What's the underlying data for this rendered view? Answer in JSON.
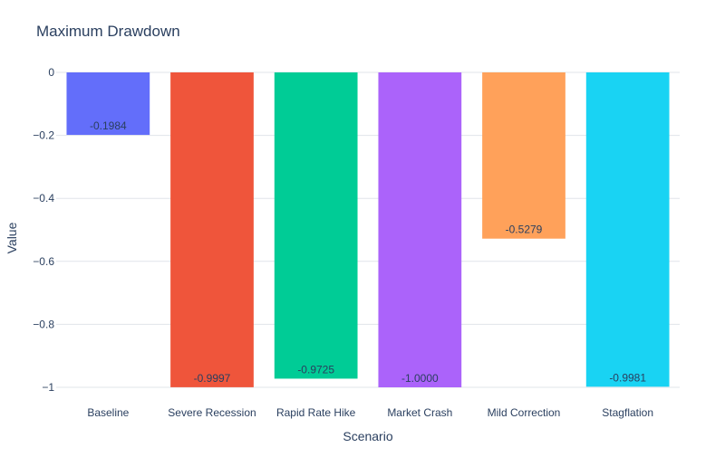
{
  "chart_data": {
    "type": "bar",
    "title": "Maximum Drawdown",
    "xlabel": "Scenario",
    "ylabel": "Value",
    "ylim": [
      -1,
      0
    ],
    "yticks": [
      0,
      -0.2,
      -0.4,
      -0.6,
      -0.8,
      -1
    ],
    "ytick_labels": [
      "0",
      "−0.2",
      "−0.4",
      "−0.6",
      "−0.8",
      "−1"
    ],
    "grid": true,
    "categories": [
      "Baseline",
      "Severe Recession",
      "Rapid Rate Hike",
      "Market Crash",
      "Mild Correction",
      "Stagflation"
    ],
    "values": [
      -0.1984,
      -0.9997,
      -0.9725,
      -1.0,
      -0.5279,
      -0.9981
    ],
    "value_labels": [
      "-0.1984",
      "-0.9997",
      "-0.9725",
      "-1.0000",
      "-0.5279",
      "-0.9981"
    ],
    "colors": [
      "#636EFA",
      "#EF553B",
      "#00CC96",
      "#AB63FA",
      "#FFA15A",
      "#19D3F3"
    ]
  }
}
